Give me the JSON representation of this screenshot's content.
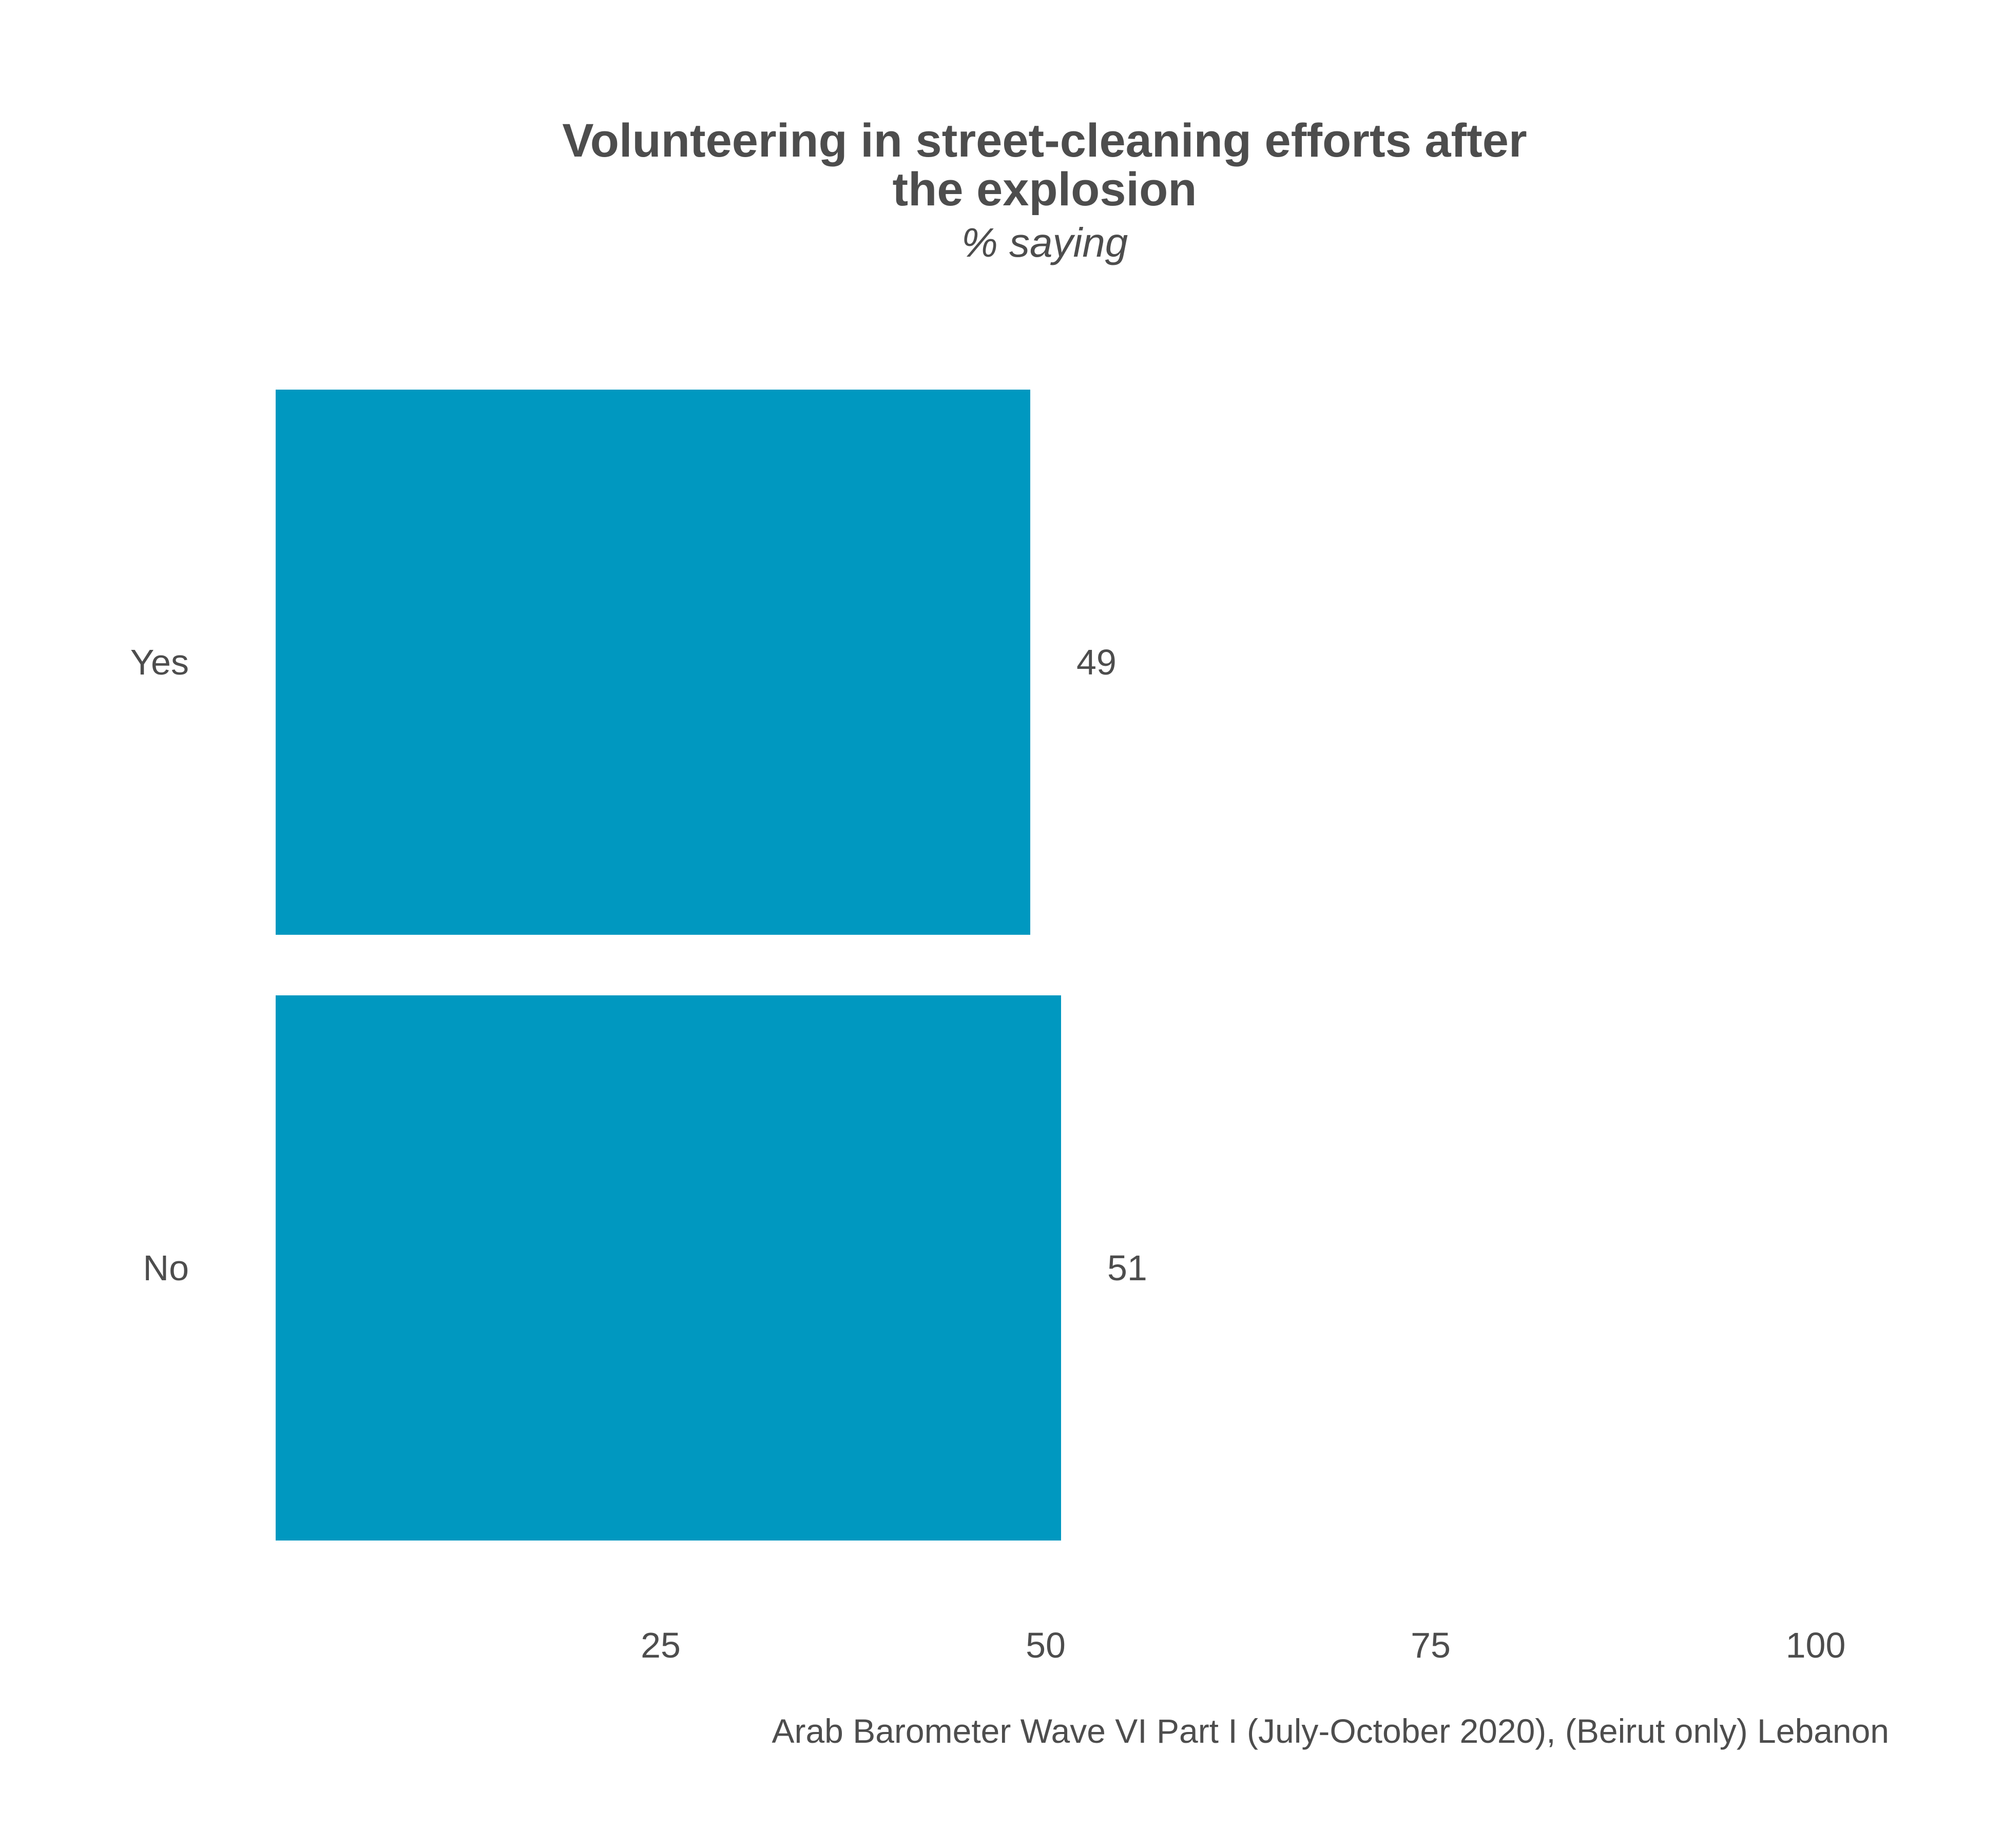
{
  "chart_data": {
    "type": "bar",
    "orientation": "horizontal",
    "title": "Volunteering in street-cleaning efforts after the explosion",
    "title_lines": [
      "Volunteering in street-cleaning efforts after",
      "the explosion"
    ],
    "subtitle": "% saying",
    "categories": [
      "Yes",
      "No"
    ],
    "values": [
      49,
      51
    ],
    "value_labels": [
      "49",
      "51"
    ],
    "xlim": [
      0,
      100
    ],
    "x_ticks": [
      25,
      50,
      75,
      100
    ],
    "x_tick_labels": [
      "25",
      "50",
      "75",
      "100"
    ],
    "xlabel": "",
    "ylabel": "",
    "grid": false,
    "legend": "none",
    "bar_color": "#0098c0",
    "text_color": "#4d4d4d",
    "caption": "Arab Barometer Wave VI Part I (July-October 2020), (Beirut only) Lebanon"
  }
}
